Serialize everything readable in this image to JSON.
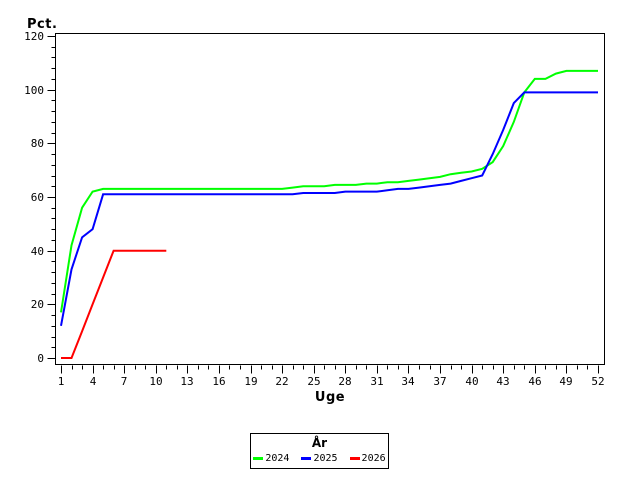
{
  "page": {
    "background": "#ffffff"
  },
  "chart_data": {
    "type": "line",
    "title": "",
    "ylabel": "Pct.",
    "xlabel": "Uge",
    "ylim": [
      0,
      120
    ],
    "xlim": [
      1,
      52
    ],
    "grid": false,
    "frame_color": "#000000",
    "background": "#ffffff",
    "y_major_ticks": [
      0,
      20,
      40,
      60,
      80,
      100,
      120
    ],
    "y_minor_step": 4,
    "x_major_ticks": [
      1,
      4,
      7,
      10,
      13,
      16,
      19,
      22,
      25,
      28,
      31,
      34,
      37,
      40,
      43,
      46,
      49,
      52
    ],
    "x_minor_step": 1,
    "legend": {
      "title": "År",
      "position": "bottom-center",
      "entries": [
        {
          "label": "2024",
          "color": "#00ff00"
        },
        {
          "label": "2025",
          "color": "#0000ff"
        },
        {
          "label": "2026",
          "color": "#ff0000"
        }
      ]
    },
    "series": [
      {
        "name": "2024",
        "color": "#00ff00",
        "points": [
          [
            1,
            17
          ],
          [
            2,
            42
          ],
          [
            3,
            56
          ],
          [
            4,
            62
          ],
          [
            5,
            63
          ],
          [
            6,
            63
          ],
          [
            7,
            63
          ],
          [
            8,
            63
          ],
          [
            9,
            63
          ],
          [
            10,
            63
          ],
          [
            11,
            63
          ],
          [
            12,
            63
          ],
          [
            13,
            63
          ],
          [
            14,
            63
          ],
          [
            15,
            63
          ],
          [
            16,
            63
          ],
          [
            17,
            63
          ],
          [
            18,
            63
          ],
          [
            19,
            63
          ],
          [
            20,
            63
          ],
          [
            21,
            63
          ],
          [
            22,
            63
          ],
          [
            23,
            63.5
          ],
          [
            24,
            64
          ],
          [
            25,
            64
          ],
          [
            26,
            64
          ],
          [
            27,
            64.5
          ],
          [
            28,
            64.5
          ],
          [
            29,
            64.5
          ],
          [
            30,
            65
          ],
          [
            31,
            65
          ],
          [
            32,
            65.5
          ],
          [
            33,
            65.5
          ],
          [
            34,
            66
          ],
          [
            35,
            66.5
          ],
          [
            36,
            67
          ],
          [
            37,
            67.5
          ],
          [
            38,
            68.5
          ],
          [
            39,
            69
          ],
          [
            40,
            69.5
          ],
          [
            41,
            70.5
          ],
          [
            42,
            73
          ],
          [
            43,
            79
          ],
          [
            44,
            88
          ],
          [
            45,
            99
          ],
          [
            46,
            104
          ],
          [
            47,
            104
          ],
          [
            48,
            106
          ],
          [
            49,
            107
          ],
          [
            50,
            107
          ],
          [
            51,
            107
          ],
          [
            52,
            107
          ]
        ]
      },
      {
        "name": "2025",
        "color": "#0000ff",
        "points": [
          [
            1,
            12
          ],
          [
            2,
            33
          ],
          [
            3,
            45
          ],
          [
            4,
            48
          ],
          [
            5,
            61
          ],
          [
            6,
            61
          ],
          [
            7,
            61
          ],
          [
            8,
            61
          ],
          [
            9,
            61
          ],
          [
            10,
            61
          ],
          [
            11,
            61
          ],
          [
            12,
            61
          ],
          [
            13,
            61
          ],
          [
            14,
            61
          ],
          [
            15,
            61
          ],
          [
            16,
            61
          ],
          [
            17,
            61
          ],
          [
            18,
            61
          ],
          [
            19,
            61
          ],
          [
            20,
            61
          ],
          [
            21,
            61
          ],
          [
            22,
            61
          ],
          [
            23,
            61
          ],
          [
            24,
            61.5
          ],
          [
            25,
            61.5
          ],
          [
            26,
            61.5
          ],
          [
            27,
            61.5
          ],
          [
            28,
            62
          ],
          [
            29,
            62
          ],
          [
            30,
            62
          ],
          [
            31,
            62
          ],
          [
            32,
            62.5
          ],
          [
            33,
            63
          ],
          [
            34,
            63
          ],
          [
            35,
            63.5
          ],
          [
            36,
            64
          ],
          [
            37,
            64.5
          ],
          [
            38,
            65
          ],
          [
            39,
            66
          ],
          [
            40,
            67
          ],
          [
            41,
            68
          ],
          [
            42,
            76
          ],
          [
            43,
            85
          ],
          [
            44,
            95
          ],
          [
            45,
            99
          ],
          [
            46,
            99
          ],
          [
            47,
            99
          ],
          [
            48,
            99
          ],
          [
            49,
            99
          ],
          [
            50,
            99
          ],
          [
            51,
            99
          ],
          [
            52,
            99
          ]
        ]
      },
      {
        "name": "2026",
        "color": "#ff0000",
        "points": [
          [
            1,
            0
          ],
          [
            2,
            0
          ],
          [
            3,
            10
          ],
          [
            4,
            20
          ],
          [
            5,
            30
          ],
          [
            6,
            40
          ],
          [
            7,
            40
          ],
          [
            8,
            40
          ],
          [
            9,
            40
          ],
          [
            10,
            40
          ],
          [
            11,
            40
          ]
        ]
      }
    ]
  }
}
